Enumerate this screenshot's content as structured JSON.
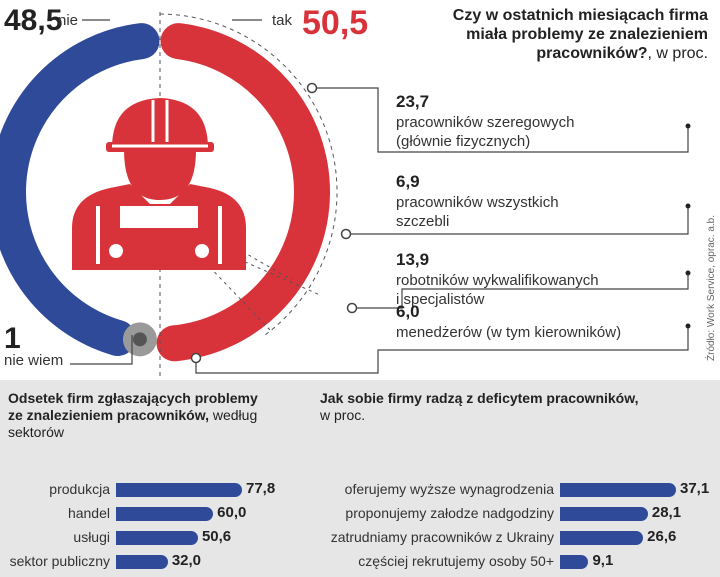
{
  "colors": {
    "no": "#2e4a99",
    "yes": "#d8333a",
    "dontknow": "#9a9a9a",
    "bars": "#2e4a99",
    "panel_bg": "#e6e6e6"
  },
  "icon": "worker-helmet-icon",
  "chart_data": [
    {
      "type": "pie",
      "title": "Czy w ostatnich miesiącach firma miała problemy ze znalezieniem pracowników?",
      "title_unit": ", w proc.",
      "title_lines": [
        "Czy w ostatnich miesiącach firma",
        "miała problemy ze znalezieniem",
        "pracowników?"
      ],
      "slices": [
        {
          "label": "nie",
          "value": 48.5,
          "value_text": "48,5"
        },
        {
          "label": "tak",
          "value": 50.5,
          "value_text": "50,5"
        },
        {
          "label": "nie wiem",
          "value": 1,
          "value_text": "1"
        }
      ],
      "breakdown": [
        {
          "value": 23.7,
          "value_text": "23,7",
          "label_lines": [
            "pracowników szeregowych",
            "(głównie fizycznych)"
          ]
        },
        {
          "value": 6.9,
          "value_text": "6,9",
          "label_lines": [
            "pracowników wszystkich",
            "szczebli"
          ]
        },
        {
          "value": 13.9,
          "value_text": "13,9",
          "label_lines": [
            "robotników wykwalifikowanych",
            "i specjalistów"
          ]
        },
        {
          "value": 6.0,
          "value_text": "6,0",
          "label_lines": [
            "menedżerów (w tym kierowników)"
          ]
        }
      ]
    },
    {
      "type": "bar",
      "title": "Odsetek firm zgłaszających problemy ze znalezieniem pracowników,",
      "title_lines": [
        "Odsetek firm zgłaszających problemy",
        "ze znalezieniem pracowników,"
      ],
      "title_rest": " według",
      "subtitle": "sektorów",
      "categories": [
        "produkcja",
        "handel",
        "usługi",
        "sektor publiczny"
      ],
      "values": [
        77.8,
        60.0,
        50.6,
        32.0
      ],
      "value_texts": [
        "77,8",
        "60,0",
        "50,6",
        "32,0"
      ]
    },
    {
      "type": "bar",
      "title": "Jak sobie firmy radzą z deficytem pracowników,",
      "subtitle": "w proc.",
      "categories": [
        "oferujemy wyższe wynagrodzenia",
        "proponujemy załodze nadgodziny",
        "zatrudniamy pracowników z Ukrainy",
        "częściej rekrutujemy osoby 50+"
      ],
      "values": [
        37.1,
        28.1,
        26.6,
        9.1
      ],
      "value_texts": [
        "37,1",
        "28,1",
        "26,6",
        "9,1"
      ]
    }
  ],
  "source": "Źródło: Work Service, oprac. a.b."
}
